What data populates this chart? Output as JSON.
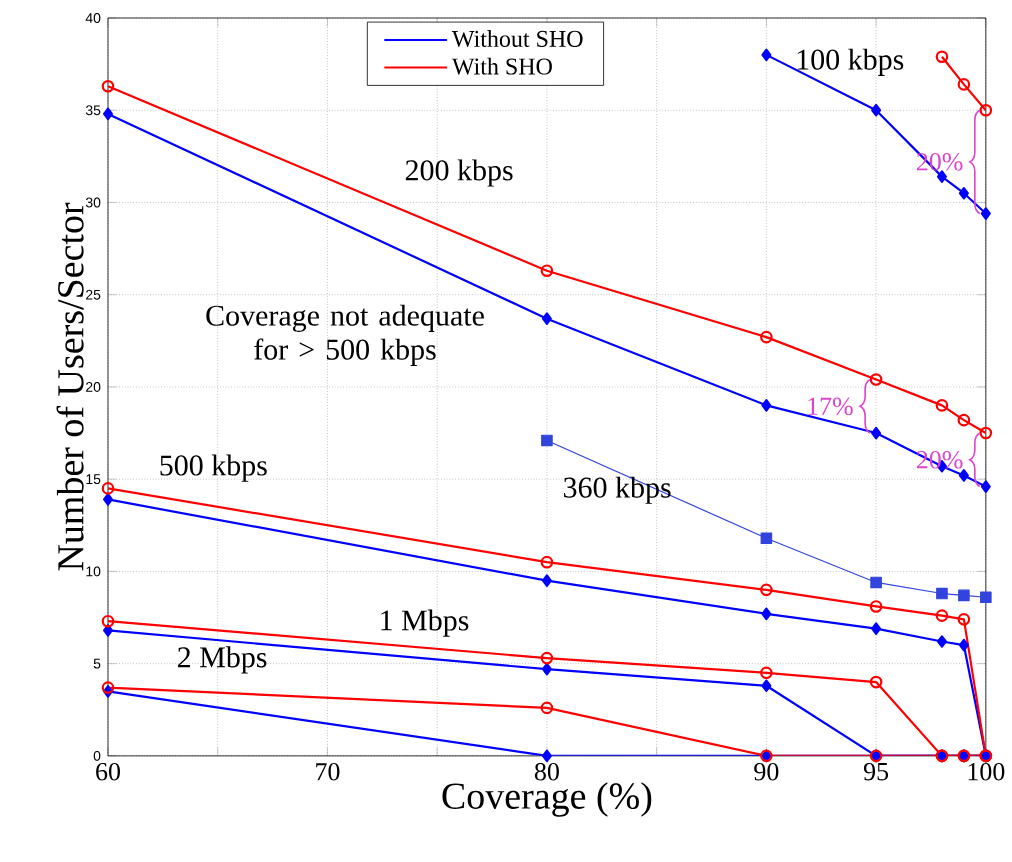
{
  "chart_data": {
    "type": "line",
    "xlabel": "Coverage (%)",
    "ylabel": "Number of Users/Sector",
    "x": [
      60,
      80,
      90,
      95,
      98,
      99,
      100
    ],
    "xlim": [
      60,
      100
    ],
    "xticks": [
      60,
      {
        "value": 65,
        "label": null
      },
      70,
      {
        "value": 75,
        "label": null
      },
      80,
      {
        "value": 85,
        "label": null
      },
      90,
      95,
      100
    ],
    "ylim": [
      0,
      40
    ],
    "yticks": [
      0,
      5,
      10,
      15,
      20,
      25,
      30,
      35,
      40
    ],
    "grid": true,
    "legend": "top",
    "line_style": "solid",
    "series": [
      {
        "name": "Without SHO",
        "color": "#0000ff",
        "marker": "diamond",
        "x": [
          90,
          95,
          98,
          99,
          100
        ],
        "values": [
          38,
          35.0,
          31.4,
          30.5,
          29.4
        ]
      },
      {
        "name": "With SHO",
        "color": "#ff0000",
        "marker": "circle",
        "x": [
          98,
          99,
          100
        ],
        "values": [
          37.9,
          36.4,
          35.0
        ]
      },
      {
        "color": "#0000ff",
        "marker": "diamond",
        "values": [
          34.8,
          23.7,
          19.0,
          17.5,
          15.7,
          15.2,
          14.6
        ]
      },
      {
        "color": "#ff0000",
        "marker": "circle",
        "values": [
          36.3,
          26.3,
          22.7,
          20.4,
          19.0,
          18.2,
          17.5
        ]
      },
      {
        "color": "#3344dd",
        "marker": "square",
        "x": [
          80,
          90,
          95,
          98,
          99,
          100
        ],
        "values": [
          17.1,
          11.8,
          9.4,
          8.8,
          8.7,
          8.6
        ]
      },
      {
        "color": "#0000ff",
        "marker": "diamond",
        "values": [
          13.9,
          9.5,
          7.7,
          6.9,
          6.2,
          6.0,
          0
        ]
      },
      {
        "color": "#ff0000",
        "marker": "circle",
        "values": [
          14.5,
          10.5,
          9.0,
          8.1,
          7.6,
          7.4,
          0
        ]
      },
      {
        "color": "#0000ff",
        "marker": "diamond",
        "values": [
          6.8,
          4.7,
          3.8,
          0,
          0,
          0,
          0
        ]
      },
      {
        "color": "#ff0000",
        "marker": "circle",
        "values": [
          7.3,
          5.3,
          4.5,
          4.0,
          0,
          0,
          0
        ]
      },
      {
        "color": "#0000ff",
        "marker": "diamond",
        "values": [
          3.5,
          0,
          0,
          0,
          0,
          0,
          0
        ]
      },
      {
        "color": "#ff0000",
        "marker": "circle",
        "values": [
          3.7,
          2.6,
          0,
          0,
          0,
          0,
          0
        ]
      }
    ],
    "annotations": [
      "100 kbps",
      "200 kbps",
      "Coverage not adequate for > 500 kbps",
      "500 kbps",
      "360 kbps",
      "1 Mbps",
      "2 Mbps",
      "20%",
      "17%",
      "20%"
    ]
  }
}
